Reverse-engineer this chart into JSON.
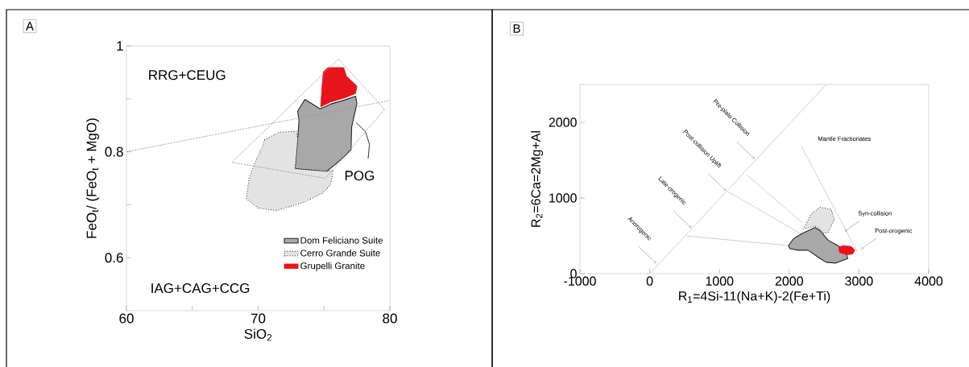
{
  "chart_data": [
    {
      "type": "line",
      "title": "A",
      "xlabel": "SiO$_{2}$",
      "ylabel": "FeO$_{t}$/ (FeO$_{t}$ + MgO)",
      "xlim": [
        60,
        80
      ],
      "ylim": [
        0.5,
        1
      ],
      "xticks": [
        60,
        {
          "value": 65,
          "label": null
        },
        70,
        {
          "value": 75,
          "label": null
        },
        80
      ],
      "yticks": [
        0.6,
        {
          "value": 0.7,
          "label": null
        },
        0.8,
        {
          "value": 0.9,
          "label": null
        },
        1
      ],
      "legend": "bottom right",
      "series": [
        {
          "name": "Dom Feliciano Suite",
          "type": "area",
          "color": "#a8a8a8",
          "line_style": "solid",
          "x": [
            72.8,
            73.0,
            73.1,
            73.0,
            73.55,
            74.7,
            75.5,
            76.6,
            77.4,
            77.5,
            77.3,
            77.1,
            77.05,
            76.5,
            75.85,
            75.2,
            74.2
          ],
          "values": [
            0.768,
            0.825,
            0.858,
            0.877,
            0.899,
            0.881,
            0.89,
            0.898,
            0.905,
            0.891,
            0.869,
            0.847,
            0.804,
            0.79,
            0.776,
            0.763,
            0.765
          ]
        },
        {
          "name": "Cerro Grande Suite",
          "type": "area",
          "color": "#e3e3e3",
          "line_style": "dotted",
          "x": [
            70.5,
            71.6,
            72.9,
            73.0,
            72.8,
            74.2,
            75.2,
            75.7,
            75.5,
            74.9,
            73.5,
            71.4,
            70.0,
            69.1,
            69.3,
            69.7,
            70.3
          ],
          "values": [
            0.823,
            0.837,
            0.839,
            0.825,
            0.768,
            0.765,
            0.763,
            0.765,
            0.738,
            0.722,
            0.705,
            0.689,
            0.694,
            0.711,
            0.749,
            0.776,
            0.809
          ]
        },
        {
          "name": "Grupelli Granite",
          "type": "area",
          "color": "#e8141c",
          "x": [
            74.75,
            74.85,
            74.95,
            75.3,
            76.5,
            76.7,
            77.5,
            77.4,
            76.6,
            75.5
          ],
          "values": [
            0.885,
            0.924,
            0.951,
            0.959,
            0.959,
            0.943,
            0.924,
            0.91,
            0.902,
            0.894
          ]
        },
        {
          "color": "#999999",
          "line_style": "dashed",
          "x": [
            60,
            80
          ],
          "values": [
            0.8,
            0.897
          ]
        },
        {
          "color": "#999999",
          "line_style": "dashed",
          "x": [
            68.0,
            76.1,
            79.6
          ],
          "values": [
            0.78,
            0.975,
            0.88
          ]
        },
        {
          "color": "#999999",
          "line_style": "dashed",
          "x": [
            79.6,
            75.1,
            68.0
          ],
          "values": [
            0.88,
            0.75,
            0.78
          ]
        },
        {
          "color": "#1a1a1a",
          "line_style": "solid",
          "x": [
            77.45,
            78.15,
            78.45,
            78.35
          ],
          "values": [
            0.855,
            0.838,
            0.814,
            0.787
          ]
        }
      ],
      "annotations": [
        "RRG+CEUG",
        "IAG+CAG+CCG",
        "POG"
      ]
    },
    {
      "type": "line",
      "title": "B",
      "xlabel": "R$_{1}$=4Si-11(Na+K)-2(Fe+Ti)",
      "ylabel": "R$_{2}$=6Ca=2Mg+Al",
      "xlim": [
        -1000,
        4000
      ],
      "ylim": [
        0,
        2500
      ],
      "xticks": [
        -1000,
        0,
        1000,
        2000,
        3000,
        4000
      ],
      "yticks": [
        0,
        1000,
        2000
      ],
      "series": [
        {
          "color": "#cccccc",
          "line_style": "solid",
          "x": [
            0,
            2530
          ],
          "values": [
            0,
            2500
          ]
        },
        {
          "color": "#cccccc",
          "line_style": "solid",
          "x": [
            520,
            1990
          ],
          "values": [
            500,
            370
          ]
        },
        {
          "color": "#cccccc",
          "line_style": "solid",
          "x": [
            1110,
            2180
          ],
          "values": [
            1090,
            520
          ]
        },
        {
          "color": "#cccccc",
          "line_style": "solid",
          "x": [
            1390,
            2190
          ],
          "values": [
            1310,
            670
          ]
        },
        {
          "color": "#cccccc",
          "line_style": "solid",
          "x": [
            2170,
            2980
          ],
          "values": [
            1690,
            280
          ]
        },
        {
          "type": "area",
          "color": "#a8a8a8",
          "line_style": "solid",
          "x": [
            1990,
            2060,
            2180,
            2370,
            2440,
            2560,
            2700,
            2820,
            2840,
            2670,
            2530,
            2410,
            2270,
            2130,
            2010
          ],
          "values": [
            370,
            460,
            530,
            610,
            570,
            440,
            370,
            260,
            200,
            140,
            150,
            220,
            310,
            310,
            330
          ]
        },
        {
          "type": "area",
          "color": "#e3e3e3",
          "line_style": "dotted",
          "x": [
            2200,
            2320,
            2440,
            2600,
            2650,
            2560,
            2510,
            2440,
            2370,
            2200
          ],
          "values": [
            590,
            790,
            880,
            850,
            720,
            550,
            530,
            590,
            630,
            590
          ]
        },
        {
          "type": "area",
          "color": "#e8141c",
          "x": [
            2710,
            2770,
            2890,
            2940,
            2910,
            2820,
            2720
          ],
          "values": [
            350,
            370,
            360,
            310,
            260,
            250,
            280
          ]
        }
      ],
      "annotations": [
        {
          "text": "Anorogenic",
          "x": 90,
          "y": 140
        },
        {
          "text": "Late-orogenic",
          "x": 590,
          "y": 610
        },
        {
          "text": "Post-collision Uplift",
          "x": 1090,
          "y": 1100
        },
        {
          "text": "Pre-plate Collision",
          "x": 1500,
          "y": 1520
        },
        "Mantle Fractionates",
        {
          "text": "Syn-collision",
          "x": 2800,
          "y": 560
        },
        {
          "text": "Post-orogenic",
          "x": 3040,
          "y": 330
        }
      ]
    }
  ]
}
